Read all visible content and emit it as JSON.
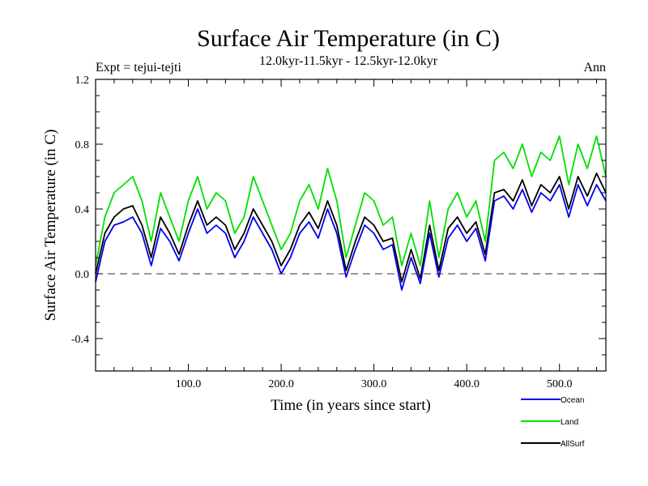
{
  "chart_data": {
    "type": "line",
    "title": "Surface Air Temperature (in C)",
    "subtitle": "12.0kyr-11.5kyr - 12.5kyr-12.0kyr",
    "left_label": "Expt = tejui-tejti",
    "right_label": "Ann",
    "xlabel": "Time (in years since start)",
    "ylabel": "Surface Air Temperature (in C)",
    "xlim": [
      0,
      550
    ],
    "ylim": [
      -0.6,
      1.2
    ],
    "x_ticks": [
      100,
      200,
      300,
      400,
      500
    ],
    "x_tick_labels": [
      "100.0",
      "200.0",
      "300.0",
      "400.0",
      "500.0"
    ],
    "y_ticks": [
      -0.4,
      0.0,
      0.4,
      0.8,
      1.2
    ],
    "y_tick_labels": [
      "-0.4",
      "0.0",
      "0.4",
      "0.8",
      "1.2"
    ],
    "reference_line": 0.0,
    "x": [
      0,
      10,
      20,
      30,
      40,
      50,
      60,
      70,
      80,
      90,
      100,
      110,
      120,
      130,
      140,
      150,
      160,
      170,
      180,
      190,
      200,
      210,
      220,
      230,
      240,
      250,
      260,
      270,
      280,
      290,
      300,
      310,
      320,
      330,
      340,
      350,
      360,
      370,
      380,
      390,
      400,
      410,
      420,
      430,
      440,
      450,
      460,
      470,
      480,
      490,
      500,
      510,
      520,
      530,
      540,
      550
    ],
    "series": [
      {
        "name": "Land",
        "color": "#00e000",
        "values": [
          0.05,
          0.35,
          0.5,
          0.55,
          0.6,
          0.45,
          0.2,
          0.5,
          0.35,
          0.2,
          0.45,
          0.6,
          0.4,
          0.5,
          0.45,
          0.25,
          0.35,
          0.6,
          0.45,
          0.3,
          0.15,
          0.25,
          0.45,
          0.55,
          0.4,
          0.65,
          0.45,
          0.1,
          0.3,
          0.5,
          0.45,
          0.3,
          0.35,
          0.05,
          0.25,
          0.05,
          0.45,
          0.1,
          0.4,
          0.5,
          0.35,
          0.45,
          0.2,
          0.7,
          0.75,
          0.65,
          0.8,
          0.6,
          0.75,
          0.7,
          0.85,
          0.55,
          0.8,
          0.65,
          0.85,
          0.6
        ]
      },
      {
        "name": "AllSurf",
        "color": "#000000",
        "values": [
          0.0,
          0.25,
          0.35,
          0.4,
          0.42,
          0.3,
          0.1,
          0.35,
          0.25,
          0.12,
          0.3,
          0.45,
          0.3,
          0.35,
          0.3,
          0.15,
          0.25,
          0.4,
          0.3,
          0.2,
          0.05,
          0.15,
          0.3,
          0.38,
          0.28,
          0.45,
          0.3,
          0.02,
          0.2,
          0.35,
          0.3,
          0.2,
          0.22,
          -0.05,
          0.15,
          -0.03,
          0.3,
          0.02,
          0.28,
          0.35,
          0.25,
          0.32,
          0.12,
          0.5,
          0.52,
          0.45,
          0.58,
          0.42,
          0.55,
          0.5,
          0.6,
          0.4,
          0.6,
          0.48,
          0.62,
          0.5
        ]
      },
      {
        "name": "Ocean",
        "color": "#0000ee",
        "values": [
          -0.05,
          0.2,
          0.3,
          0.32,
          0.35,
          0.25,
          0.05,
          0.28,
          0.2,
          0.08,
          0.25,
          0.4,
          0.25,
          0.3,
          0.25,
          0.1,
          0.2,
          0.35,
          0.25,
          0.15,
          0.0,
          0.1,
          0.25,
          0.32,
          0.22,
          0.4,
          0.25,
          -0.02,
          0.15,
          0.3,
          0.25,
          0.15,
          0.18,
          -0.1,
          0.1,
          -0.06,
          0.25,
          -0.02,
          0.22,
          0.3,
          0.2,
          0.28,
          0.08,
          0.45,
          0.48,
          0.4,
          0.52,
          0.38,
          0.5,
          0.45,
          0.55,
          0.35,
          0.55,
          0.42,
          0.55,
          0.45
        ]
      }
    ],
    "legend": {
      "position": "bottom-right",
      "entries": [
        {
          "label": "Ocean",
          "color": "#0000ee"
        },
        {
          "label": "Land",
          "color": "#00e000"
        },
        {
          "label": "AllSurf",
          "color": "#000000"
        }
      ]
    }
  }
}
